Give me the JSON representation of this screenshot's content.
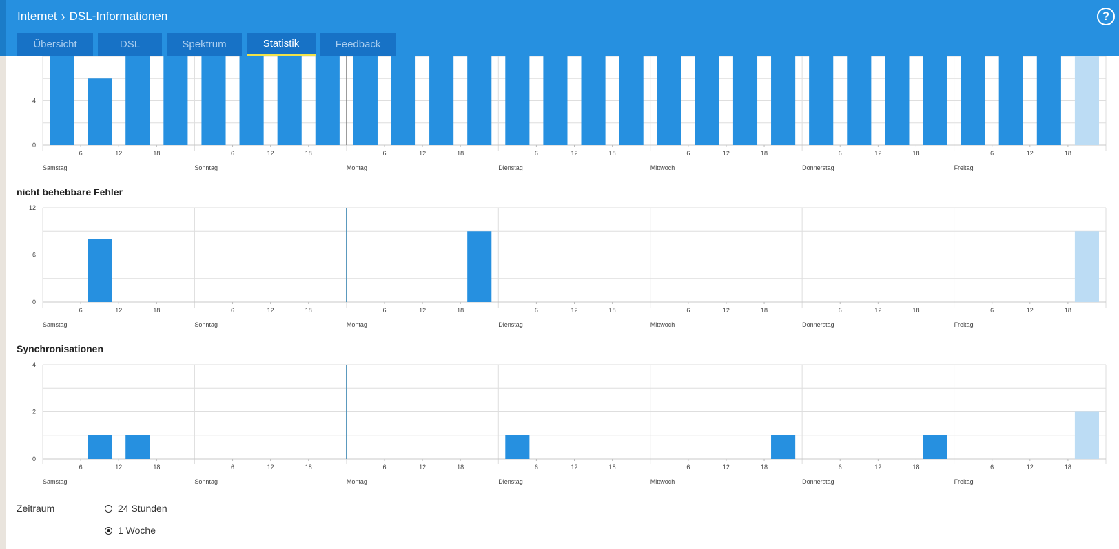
{
  "header": {
    "breadcrumb": [
      "Internet",
      "DSL-Informationen"
    ],
    "help_symbol": "?",
    "tabs": [
      {
        "label": "Übersicht",
        "active": false
      },
      {
        "label": "DSL",
        "active": false
      },
      {
        "label": "Spektrum",
        "active": false
      },
      {
        "label": "Statistik",
        "active": true
      },
      {
        "label": "Feedback",
        "active": false
      }
    ]
  },
  "colors": {
    "header": "#2690e0",
    "tab": "#1772c6",
    "tab_active_underline": "#f0e34a",
    "bar": "#2690e0",
    "bar_current": "#bcdcf4",
    "grid": "#dedede",
    "marker": "#4a90b8"
  },
  "chart_data": [
    {
      "type": "bar",
      "title": "",
      "ylim": [
        0,
        8
      ],
      "y_ticks": [
        "0",
        "4"
      ],
      "days": [
        "Samstag",
        "Sonntag",
        "Montag",
        "Dienstag",
        "Mittwoch",
        "Donnerstag",
        "Freitag"
      ],
      "hour_ticks": [
        "6",
        "12",
        "18"
      ],
      "bins_per_day": 4,
      "values": [
        8,
        6,
        8,
        8,
        8,
        8,
        8,
        8,
        8,
        8,
        8,
        8,
        8,
        8,
        8,
        8,
        8,
        8,
        8,
        8,
        8,
        8,
        8,
        8,
        8,
        8,
        8,
        8
      ],
      "current_index": 27,
      "cropped": true
    },
    {
      "type": "bar",
      "title": "nicht behebbare Fehler",
      "ylim": [
        0,
        12
      ],
      "y_ticks": [
        "0",
        "6",
        "12"
      ],
      "days": [
        "Samstag",
        "Sonntag",
        "Montag",
        "Dienstag",
        "Mittwoch",
        "Donnerstag",
        "Freitag"
      ],
      "hour_ticks": [
        "6",
        "12",
        "18"
      ],
      "bins_per_day": 4,
      "values": [
        0,
        8,
        0,
        0,
        0,
        0,
        0,
        0,
        0,
        0,
        0,
        9,
        0,
        0,
        0,
        0,
        0,
        0,
        0,
        0,
        0,
        0,
        0,
        0,
        0,
        0,
        0,
        9
      ],
      "current_index": 27
    },
    {
      "type": "bar",
      "title": "Synchronisationen",
      "ylim": [
        0,
        4
      ],
      "y_ticks": [
        "0",
        "2",
        "4"
      ],
      "days": [
        "Samstag",
        "Sonntag",
        "Montag",
        "Dienstag",
        "Mittwoch",
        "Donnerstag",
        "Freitag"
      ],
      "hour_ticks": [
        "6",
        "12",
        "18"
      ],
      "bins_per_day": 4,
      "values": [
        0,
        1,
        1,
        0,
        0,
        0,
        0,
        0,
        0,
        0,
        0,
        0,
        1,
        0,
        0,
        0,
        0,
        0,
        0,
        1,
        0,
        0,
        0,
        1,
        0,
        0,
        0,
        2
      ],
      "current_index": 27
    }
  ],
  "period": {
    "label": "Zeitraum",
    "options": [
      {
        "label": "24 Stunden",
        "checked": false
      },
      {
        "label": "1 Woche",
        "checked": true
      }
    ]
  }
}
